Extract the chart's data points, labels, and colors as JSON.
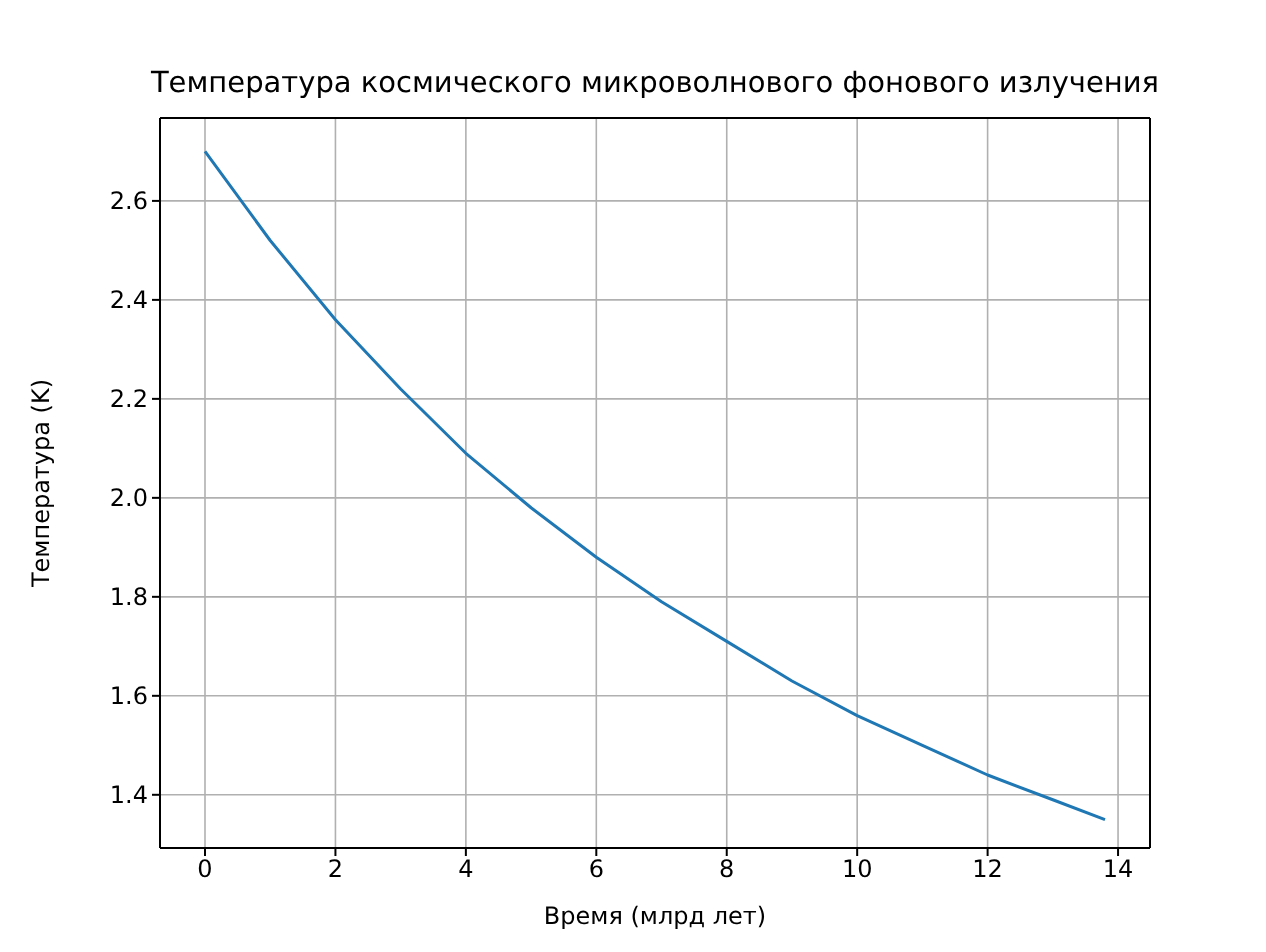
{
  "chart_data": {
    "type": "line",
    "title": "Температура космического микроволнового фонового излучения",
    "xlabel": "Время (млрд лет)",
    "ylabel": "Температура (K)",
    "x": [
      0,
      1,
      2,
      3,
      4,
      5,
      6,
      7,
      8,
      9,
      10,
      11,
      12,
      13,
      13.8
    ],
    "series": [
      {
        "color": "#1f77b4",
        "values": [
          2.7,
          2.52,
          2.36,
          2.22,
          2.09,
          1.98,
          1.88,
          1.79,
          1.71,
          1.63,
          1.56,
          1.5,
          1.44,
          1.39,
          1.35
        ]
      }
    ],
    "xlim": [
      -0.69,
      14.49
    ],
    "ylim": [
      1.2925,
      2.7675
    ],
    "xticks": [
      0,
      2,
      4,
      6,
      8,
      10,
      12,
      14
    ],
    "yticks": [
      1.4,
      1.6,
      1.8,
      {
        "value": 2,
        "label": "2.0"
      },
      2.2,
      2.4,
      2.6
    ],
    "grid": true,
    "marker": "none",
    "line_style": "solid"
  }
}
